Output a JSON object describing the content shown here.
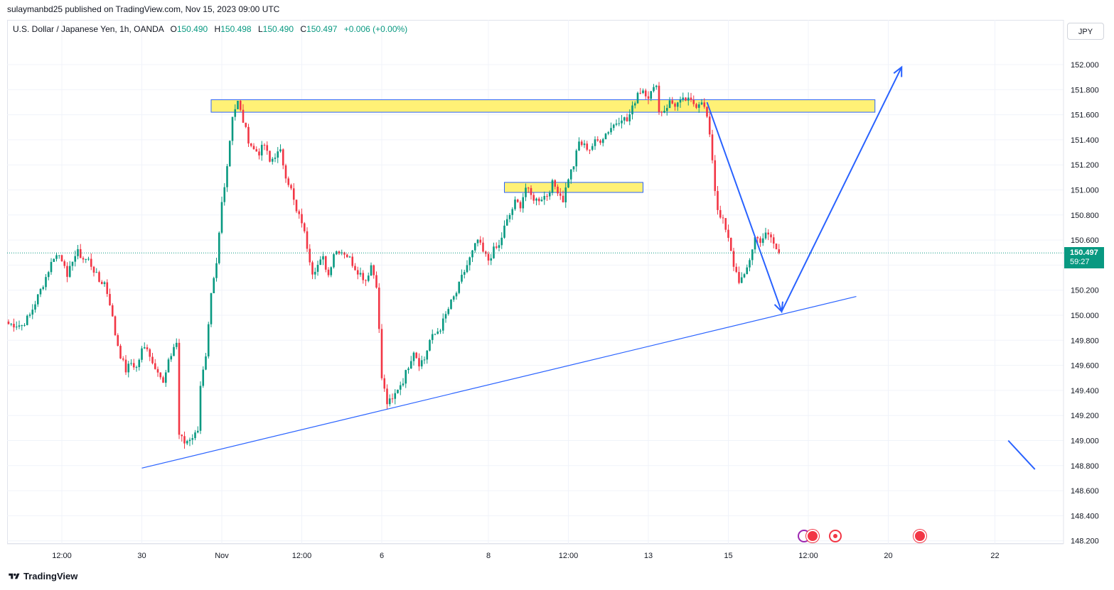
{
  "header": {
    "publisher_line": "sulaymanbd25 published on TradingView.com, Nov 15, 2023 09:00 UTC"
  },
  "legend": {
    "symbol": "U.S. Dollar / Japanese Yen, 1h, OANDA",
    "o_label": "O",
    "o_value": "150.490",
    "h_label": "H",
    "h_value": "150.498",
    "l_label": "L",
    "l_value": "150.490",
    "c_label": "C",
    "c_value": "150.497",
    "change": "+0.006 (+0.00%)"
  },
  "currency_button": "JPY",
  "last_price": {
    "value": "150.497",
    "countdown": "59:27"
  },
  "footer": {
    "brand": "TradingView"
  },
  "colors": {
    "up": "#089981",
    "down": "#f23645",
    "zone_fill": "#fff176",
    "zone_border": "#2962ff",
    "drawing": "#2962ff",
    "grid": "#f0f3fa"
  },
  "chart_data": {
    "type": "candlestick",
    "symbol": "USDJPY",
    "timeframe": "1h",
    "ylim": [
      148.2,
      152.0
    ],
    "yticks": [
      148.2,
      148.4,
      148.6,
      148.8,
      149.0,
      149.2,
      149.4,
      149.6,
      149.8,
      150.0,
      150.2,
      150.4,
      150.6,
      150.8,
      151.0,
      151.2,
      151.4,
      151.6,
      151.8,
      152.0
    ],
    "ytick_labels": [
      "148.200",
      "148.400",
      "148.600",
      "148.800",
      "149.000",
      "149.200",
      "149.400",
      "149.600",
      "149.800",
      "150.000",
      "150.200",
      "150.400",
      "150.600",
      "150.800",
      "151.000",
      "151.200",
      "151.400",
      "151.600",
      "151.800",
      "152.000"
    ],
    "x_axis_labels": [
      "12:00",
      "30",
      "Nov",
      "12:00",
      "6",
      "8",
      "12:00",
      "13",
      "15",
      "12:00",
      "20",
      "22"
    ],
    "x_axis_label_bars": [
      20,
      50,
      80,
      110,
      140,
      180,
      210,
      240,
      270,
      300,
      330,
      370
    ],
    "close_path": [
      [
        0,
        149.93
      ],
      [
        5,
        149.92
      ],
      [
        8,
        150.0
      ],
      [
        10,
        150.1
      ],
      [
        13,
        150.25
      ],
      [
        15,
        150.36
      ],
      [
        17,
        150.47
      ],
      [
        19,
        150.48
      ],
      [
        21,
        150.42
      ],
      [
        22,
        150.28
      ],
      [
        24,
        150.45
      ],
      [
        26,
        150.5
      ],
      [
        28,
        150.45
      ],
      [
        30,
        150.44
      ],
      [
        32,
        150.36
      ],
      [
        34,
        150.27
      ],
      [
        36,
        150.26
      ],
      [
        38,
        150.1
      ],
      [
        40,
        149.85
      ],
      [
        42,
        149.68
      ],
      [
        44,
        149.56
      ],
      [
        46,
        149.62
      ],
      [
        48,
        149.58
      ],
      [
        50,
        149.72
      ],
      [
        52,
        149.75
      ],
      [
        54,
        149.62
      ],
      [
        56,
        149.57
      ],
      [
        58,
        149.45
      ],
      [
        60,
        149.62
      ],
      [
        62,
        149.75
      ],
      [
        63,
        149.78
      ],
      [
        64,
        149.05
      ],
      [
        66,
        148.98
      ],
      [
        68,
        149.02
      ],
      [
        70,
        149.05
      ],
      [
        71,
        149.1
      ],
      [
        72,
        149.45
      ],
      [
        74,
        149.65
      ],
      [
        76,
        150.15
      ],
      [
        78,
        150.4
      ],
      [
        80,
        150.9
      ],
      [
        82,
        151.2
      ],
      [
        84,
        151.6
      ],
      [
        86,
        151.7
      ],
      [
        88,
        151.55
      ],
      [
        90,
        151.4
      ],
      [
        92,
        151.32
      ],
      [
        94,
        151.3
      ],
      [
        96,
        151.36
      ],
      [
        98,
        151.22
      ],
      [
        100,
        151.28
      ],
      [
        102,
        151.3
      ],
      [
        104,
        151.12
      ],
      [
        106,
        151.0
      ],
      [
        108,
        150.82
      ],
      [
        110,
        150.75
      ],
      [
        112,
        150.55
      ],
      [
        114,
        150.35
      ],
      [
        116,
        150.4
      ],
      [
        118,
        150.45
      ],
      [
        120,
        150.32
      ],
      [
        122,
        150.5
      ],
      [
        124,
        150.52
      ],
      [
        126,
        150.5
      ],
      [
        128,
        150.45
      ],
      [
        130,
        150.38
      ],
      [
        132,
        150.33
      ],
      [
        134,
        150.28
      ],
      [
        136,
        150.4
      ],
      [
        138,
        150.25
      ],
      [
        140,
        149.5
      ],
      [
        142,
        149.3
      ],
      [
        144,
        149.32
      ],
      [
        146,
        149.42
      ],
      [
        148,
        149.48
      ],
      [
        150,
        149.6
      ],
      [
        152,
        149.72
      ],
      [
        154,
        149.62
      ],
      [
        156,
        149.65
      ],
      [
        158,
        149.8
      ],
      [
        160,
        149.85
      ],
      [
        162,
        149.9
      ],
      [
        164,
        150.0
      ],
      [
        166,
        150.1
      ],
      [
        168,
        150.18
      ],
      [
        170,
        150.3
      ],
      [
        172,
        150.4
      ],
      [
        174,
        150.5
      ],
      [
        176,
        150.6
      ],
      [
        178,
        150.5
      ],
      [
        180,
        150.44
      ],
      [
        182,
        150.52
      ],
      [
        184,
        150.55
      ],
      [
        186,
        150.7
      ],
      [
        188,
        150.8
      ],
      [
        190,
        150.9
      ],
      [
        192,
        150.88
      ],
      [
        194,
        151.02
      ],
      [
        196,
        150.95
      ],
      [
        198,
        150.92
      ],
      [
        200,
        150.94
      ],
      [
        202,
        150.96
      ],
      [
        204,
        151.05
      ],
      [
        206,
        151.0
      ],
      [
        208,
        150.92
      ],
      [
        210,
        151.1
      ],
      [
        212,
        151.2
      ],
      [
        214,
        151.38
      ],
      [
        216,
        151.35
      ],
      [
        218,
        151.33
      ],
      [
        220,
        151.38
      ],
      [
        222,
        151.4
      ],
      [
        224,
        151.45
      ],
      [
        226,
        151.5
      ],
      [
        228,
        151.54
      ],
      [
        230,
        151.58
      ],
      [
        232,
        151.55
      ],
      [
        234,
        151.65
      ],
      [
        236,
        151.78
      ],
      [
        238,
        151.8
      ],
      [
        240,
        151.75
      ],
      [
        242,
        151.8
      ],
      [
        243,
        151.86
      ],
      [
        244,
        151.62
      ],
      [
        246,
        151.64
      ],
      [
        248,
        151.7
      ],
      [
        250,
        151.68
      ],
      [
        252,
        151.7
      ],
      [
        254,
        151.72
      ],
      [
        256,
        151.7
      ],
      [
        258,
        151.68
      ],
      [
        260,
        151.72
      ],
      [
        262,
        151.58
      ],
      [
        264,
        151.25
      ],
      [
        265,
        151.0
      ],
      [
        266,
        150.85
      ],
      [
        268,
        150.75
      ],
      [
        270,
        150.6
      ],
      [
        272,
        150.4
      ],
      [
        274,
        150.28
      ],
      [
        276,
        150.3
      ],
      [
        278,
        150.45
      ],
      [
        280,
        150.62
      ],
      [
        282,
        150.6
      ],
      [
        284,
        150.64
      ],
      [
        286,
        150.62
      ],
      [
        288,
        150.52
      ],
      [
        289,
        150.497
      ]
    ],
    "last_price": 150.497,
    "zones": [
      {
        "bar_from": 76,
        "bar_to": 325,
        "price_low": 151.62,
        "price_high": 151.72
      },
      {
        "bar_from": 186,
        "bar_to": 238,
        "price_low": 150.98,
        "price_high": 151.06
      }
    ],
    "trendline": {
      "bar_from": 50,
      "price_from": 148.78,
      "bar_to": 318,
      "price_to": 150.15
    },
    "projection": [
      {
        "bar": 262,
        "price": 151.7
      },
      {
        "bar": 290,
        "price": 150.03
      },
      {
        "bar": 335,
        "price": 151.98
      }
    ],
    "minor_line": {
      "bar_from": 375,
      "price_from": 149.0,
      "bar_to": 385,
      "price_to": 148.77
    }
  }
}
